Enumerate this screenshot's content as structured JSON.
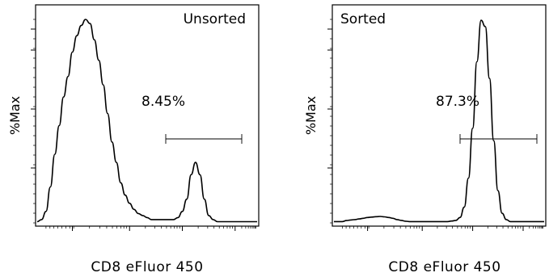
{
  "chart_data": [
    {
      "type": "line",
      "panel_label": "Unsorted",
      "xlabel": "CD8 eFluor 450",
      "ylabel": "%Max",
      "gate_label": "8.45%",
      "series": [
        {
          "x": [
            0.0,
            0.02,
            0.04,
            0.06,
            0.08,
            0.1,
            0.12,
            0.14,
            0.16,
            0.18,
            0.2,
            0.22,
            0.24,
            0.26,
            0.28,
            0.3,
            0.32,
            0.34,
            0.36,
            0.38,
            0.4,
            0.42,
            0.44,
            0.46,
            0.48,
            0.5,
            0.52,
            0.54,
            0.56,
            0.58,
            0.6,
            0.62,
            0.64,
            0.66,
            0.68,
            0.7,
            0.72,
            0.74,
            0.76,
            0.78,
            0.8,
            0.82,
            0.84,
            0.86,
            0.88,
            0.9,
            0.92,
            0.94,
            0.96,
            0.98,
            1.0
          ],
          "y": [
            1,
            2,
            6,
            18,
            34,
            48,
            62,
            72,
            84,
            92,
            97,
            100,
            98,
            90,
            80,
            68,
            54,
            40,
            30,
            20,
            14,
            10,
            7,
            5,
            4,
            3,
            2,
            2,
            2,
            2,
            2,
            2,
            3,
            6,
            12,
            24,
            30,
            24,
            12,
            4,
            2,
            1,
            1,
            1,
            1,
            1,
            1,
            1,
            1,
            1,
            1
          ]
        }
      ]
    },
    {
      "type": "line",
      "panel_label": "Sorted",
      "xlabel": "CD8 eFluor 450",
      "ylabel": "%Max",
      "gate_label": "87.3%",
      "series": [
        {
          "x": [
            0.0,
            0.02,
            0.04,
            0.06,
            0.08,
            0.1,
            0.12,
            0.14,
            0.16,
            0.18,
            0.2,
            0.22,
            0.24,
            0.26,
            0.28,
            0.3,
            0.32,
            0.34,
            0.36,
            0.38,
            0.4,
            0.42,
            0.44,
            0.46,
            0.48,
            0.5,
            0.52,
            0.54,
            0.56,
            0.58,
            0.6,
            0.62,
            0.64,
            0.66,
            0.68,
            0.7,
            0.72,
            0.74,
            0.76,
            0.78,
            0.8,
            0.82,
            0.84,
            0.86,
            0.88,
            0.9,
            0.92,
            0.94,
            0.96,
            0.98,
            1.0
          ],
          "y": [
            1,
            1,
            1,
            1.5,
            1.8,
            2,
            2.3,
            2.6,
            3,
            3.2,
            3.4,
            3.5,
            3.3,
            3,
            2.6,
            2,
            1.6,
            1.2,
            1,
            1,
            1,
            1,
            1,
            1,
            1,
            1,
            1,
            1,
            1.3,
            1.6,
            3,
            8,
            22,
            46,
            78,
            98,
            95,
            70,
            40,
            16,
            5,
            2,
            1,
            1,
            1,
            1,
            1,
            1,
            1,
            1,
            1
          ]
        }
      ]
    }
  ]
}
